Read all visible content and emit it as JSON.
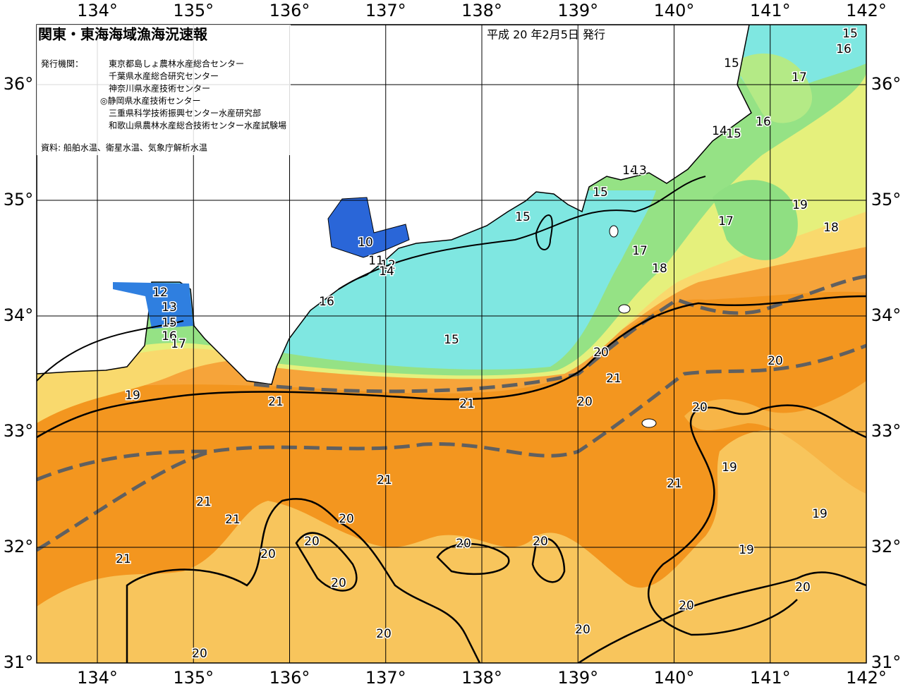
{
  "header": {
    "title": "関東・東海海域漁海況速報",
    "date": "平成 20 年2月5日 発行",
    "issuer_label": "発行機関：",
    "issuers": [
      "東京都島しょ農林水産総合センター",
      "千葉県水産総合研究センター",
      "神奈川県水産技術センター",
      "◎静岡県水産技術センター",
      "三重県科学技術振興センター水産研究部",
      "和歌山県農林水産総合技術センター水産試験場"
    ],
    "source": "資料: 船舶水温、衛星水温、気象庁解析水温"
  },
  "axes": {
    "longitudes": [
      "134°",
      "135°",
      "136°",
      "137°",
      "138°",
      "139°",
      "140°",
      "141°",
      "142°"
    ],
    "latitudes": [
      "36°",
      "35°",
      "34°",
      "33°",
      "32°",
      "31°"
    ]
  },
  "contour_labels": [
    "15",
    "16",
    "15",
    "17",
    "16",
    "14",
    "15",
    "14",
    "13",
    "15",
    "15",
    "19",
    "17",
    "18",
    "17",
    "18",
    "10",
    "11",
    "12",
    "14",
    "12",
    "13",
    "15",
    "16",
    "17",
    "16",
    "15",
    "20",
    "21",
    "20",
    "19",
    "21",
    "21",
    "20",
    "20",
    "19",
    "21",
    "21",
    "21",
    "21",
    "20",
    "19",
    "20",
    "20",
    "20",
    "20",
    "21",
    "19",
    "20",
    "20",
    "20",
    "20",
    "20",
    "20"
  ]
}
